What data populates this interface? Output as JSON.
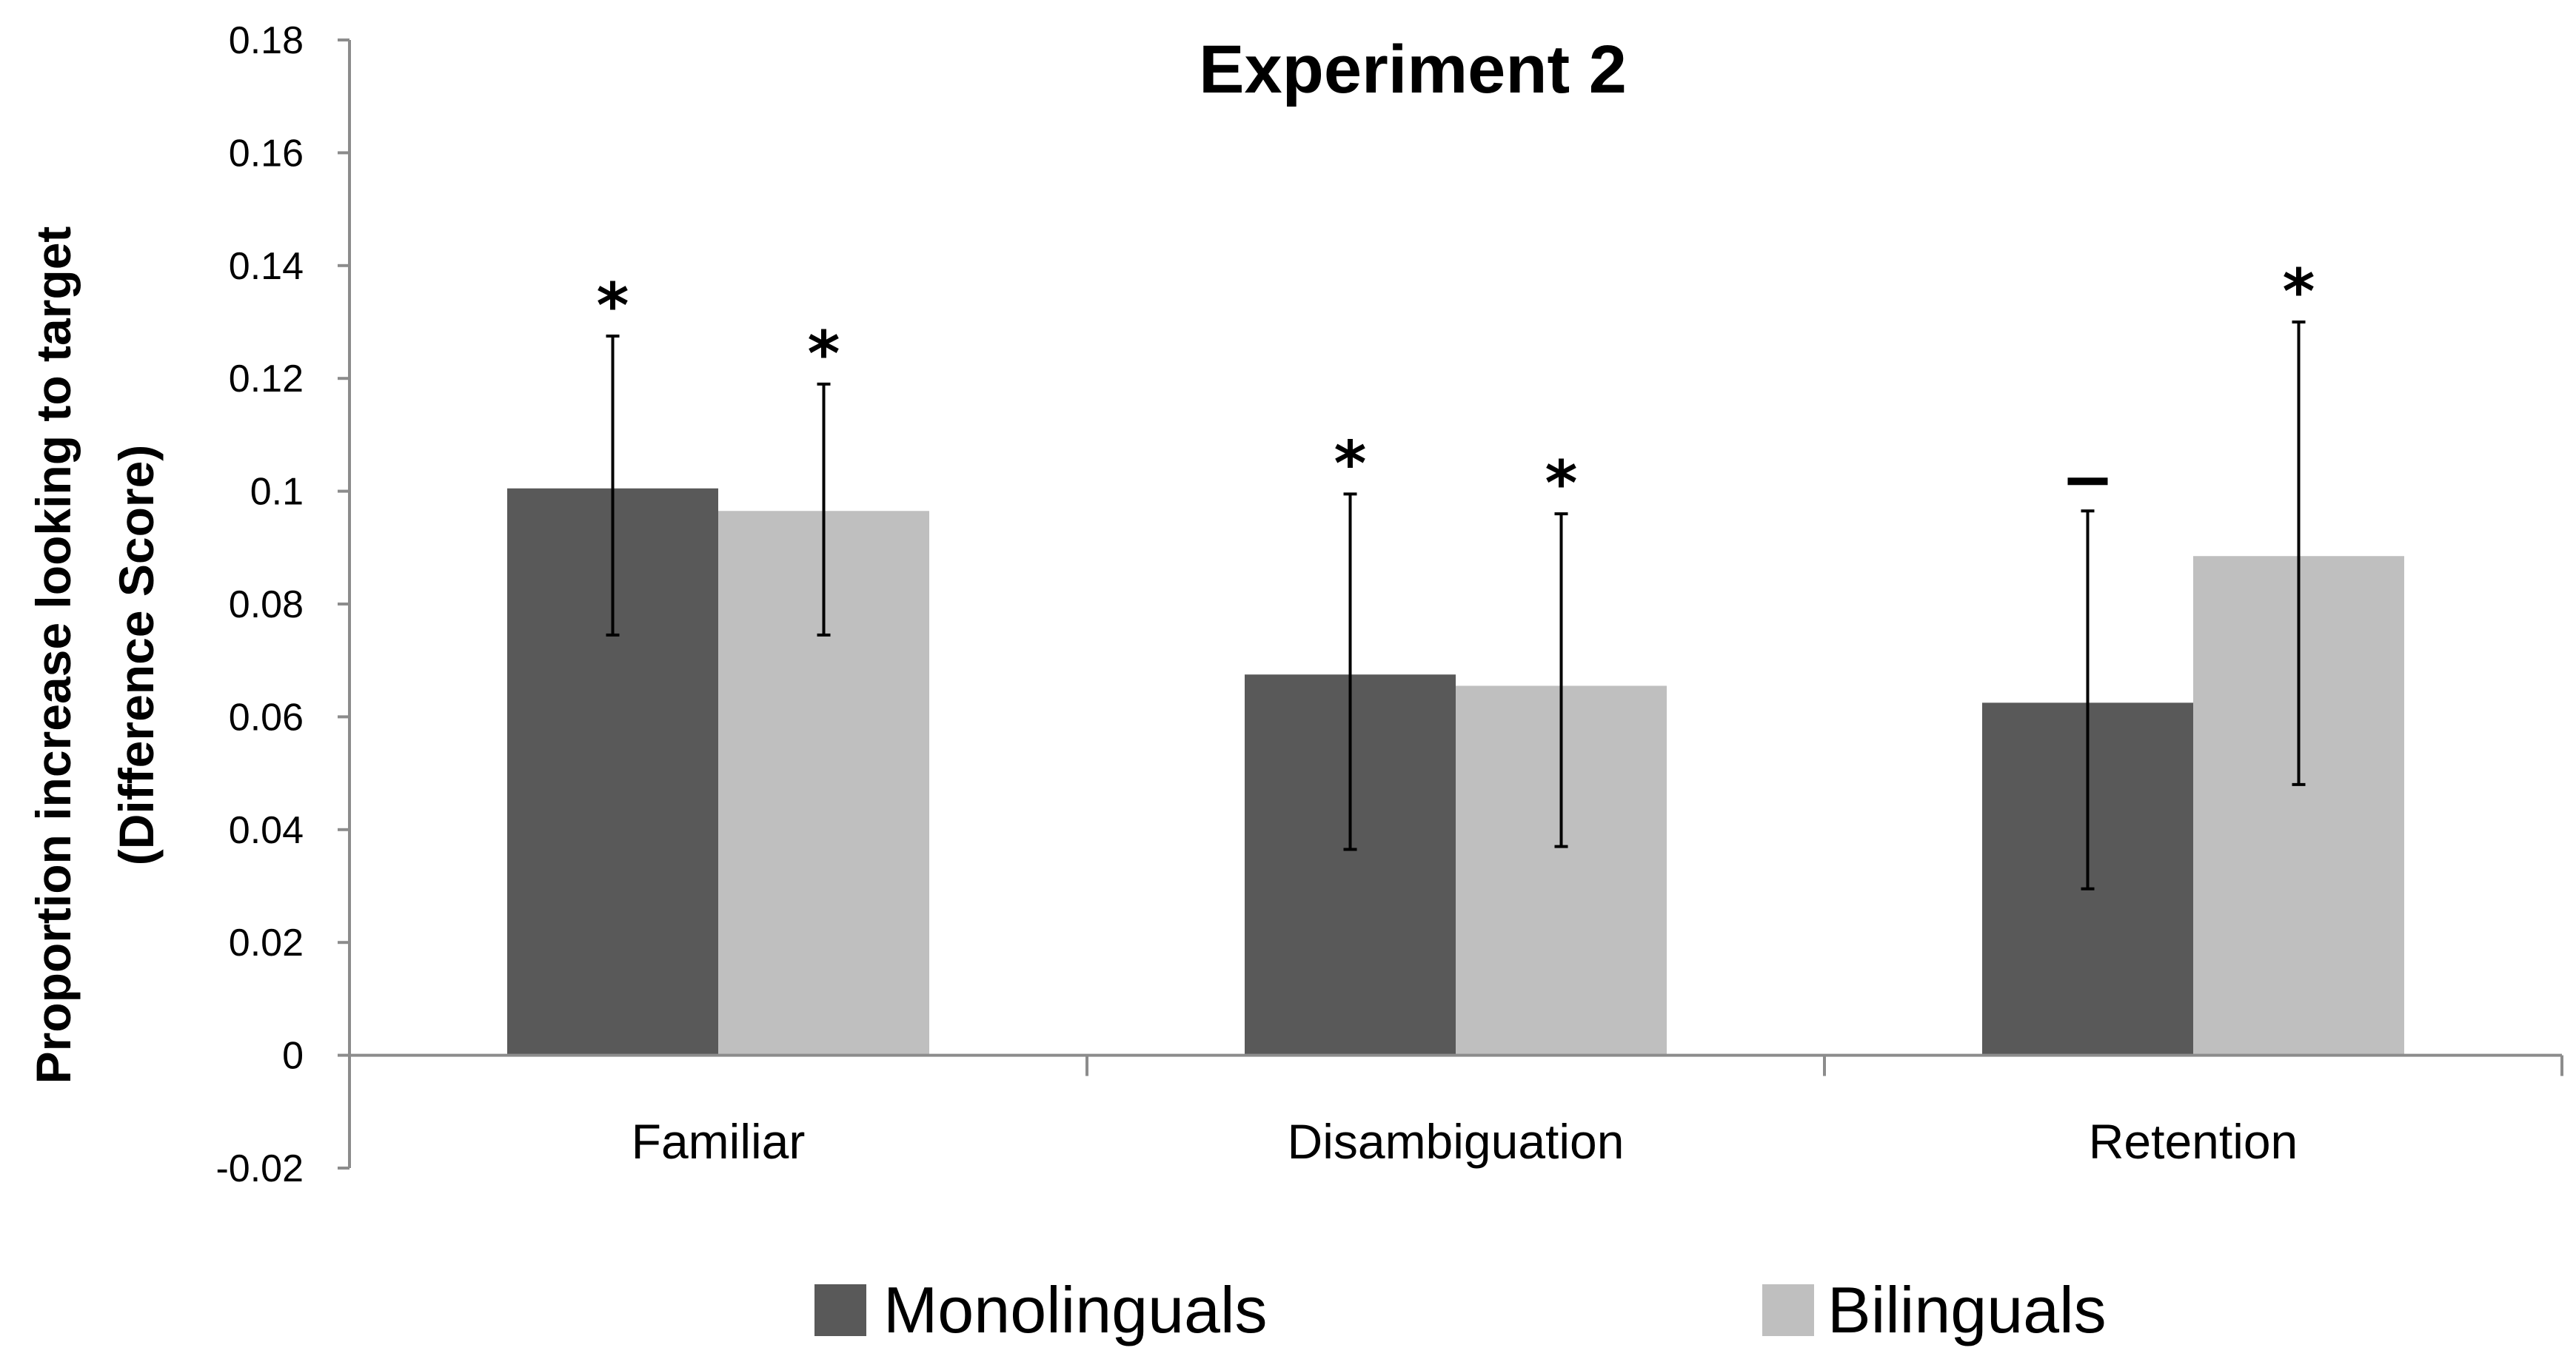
{
  "chart_data": {
    "type": "bar",
    "title": "Experiment 2",
    "ylabel_line1": "Proportion increase looking to target",
    "ylabel_line2": "(Difference Score)",
    "xlabel": "",
    "categories": [
      "Familiar",
      "Disambiguation",
      "Retention"
    ],
    "ylim": [
      -0.02,
      0.18
    ],
    "yticks": [
      -0.02,
      0,
      0.02,
      0.04,
      0.06,
      0.08,
      0.1,
      0.12,
      0.14,
      0.16,
      0.18
    ],
    "ytick_labels": [
      "-0.02",
      "0",
      "0.02",
      "0.04",
      "0.06",
      "0.08",
      "0.1",
      "0.12",
      "0.14",
      "0.16",
      "0.18"
    ],
    "series": [
      {
        "name": "Monolinguals",
        "color": "#595959",
        "values": [
          0.1005,
          0.0675,
          0.0625
        ],
        "error_low": [
          0.0745,
          0.0365,
          0.0295
        ],
        "error_high": [
          0.1275,
          0.0995,
          0.0965
        ],
        "markers": [
          "*",
          "*",
          "–"
        ]
      },
      {
        "name": "Bilinguals",
        "color": "#bfbfbf",
        "values": [
          0.0965,
          0.0655,
          0.0885
        ],
        "error_low": [
          0.0745,
          0.037,
          0.048
        ],
        "error_high": [
          0.119,
          0.096,
          0.13
        ],
        "markers": [
          "*",
          "*",
          "*"
        ]
      }
    ],
    "legend_position": "bottom"
  }
}
